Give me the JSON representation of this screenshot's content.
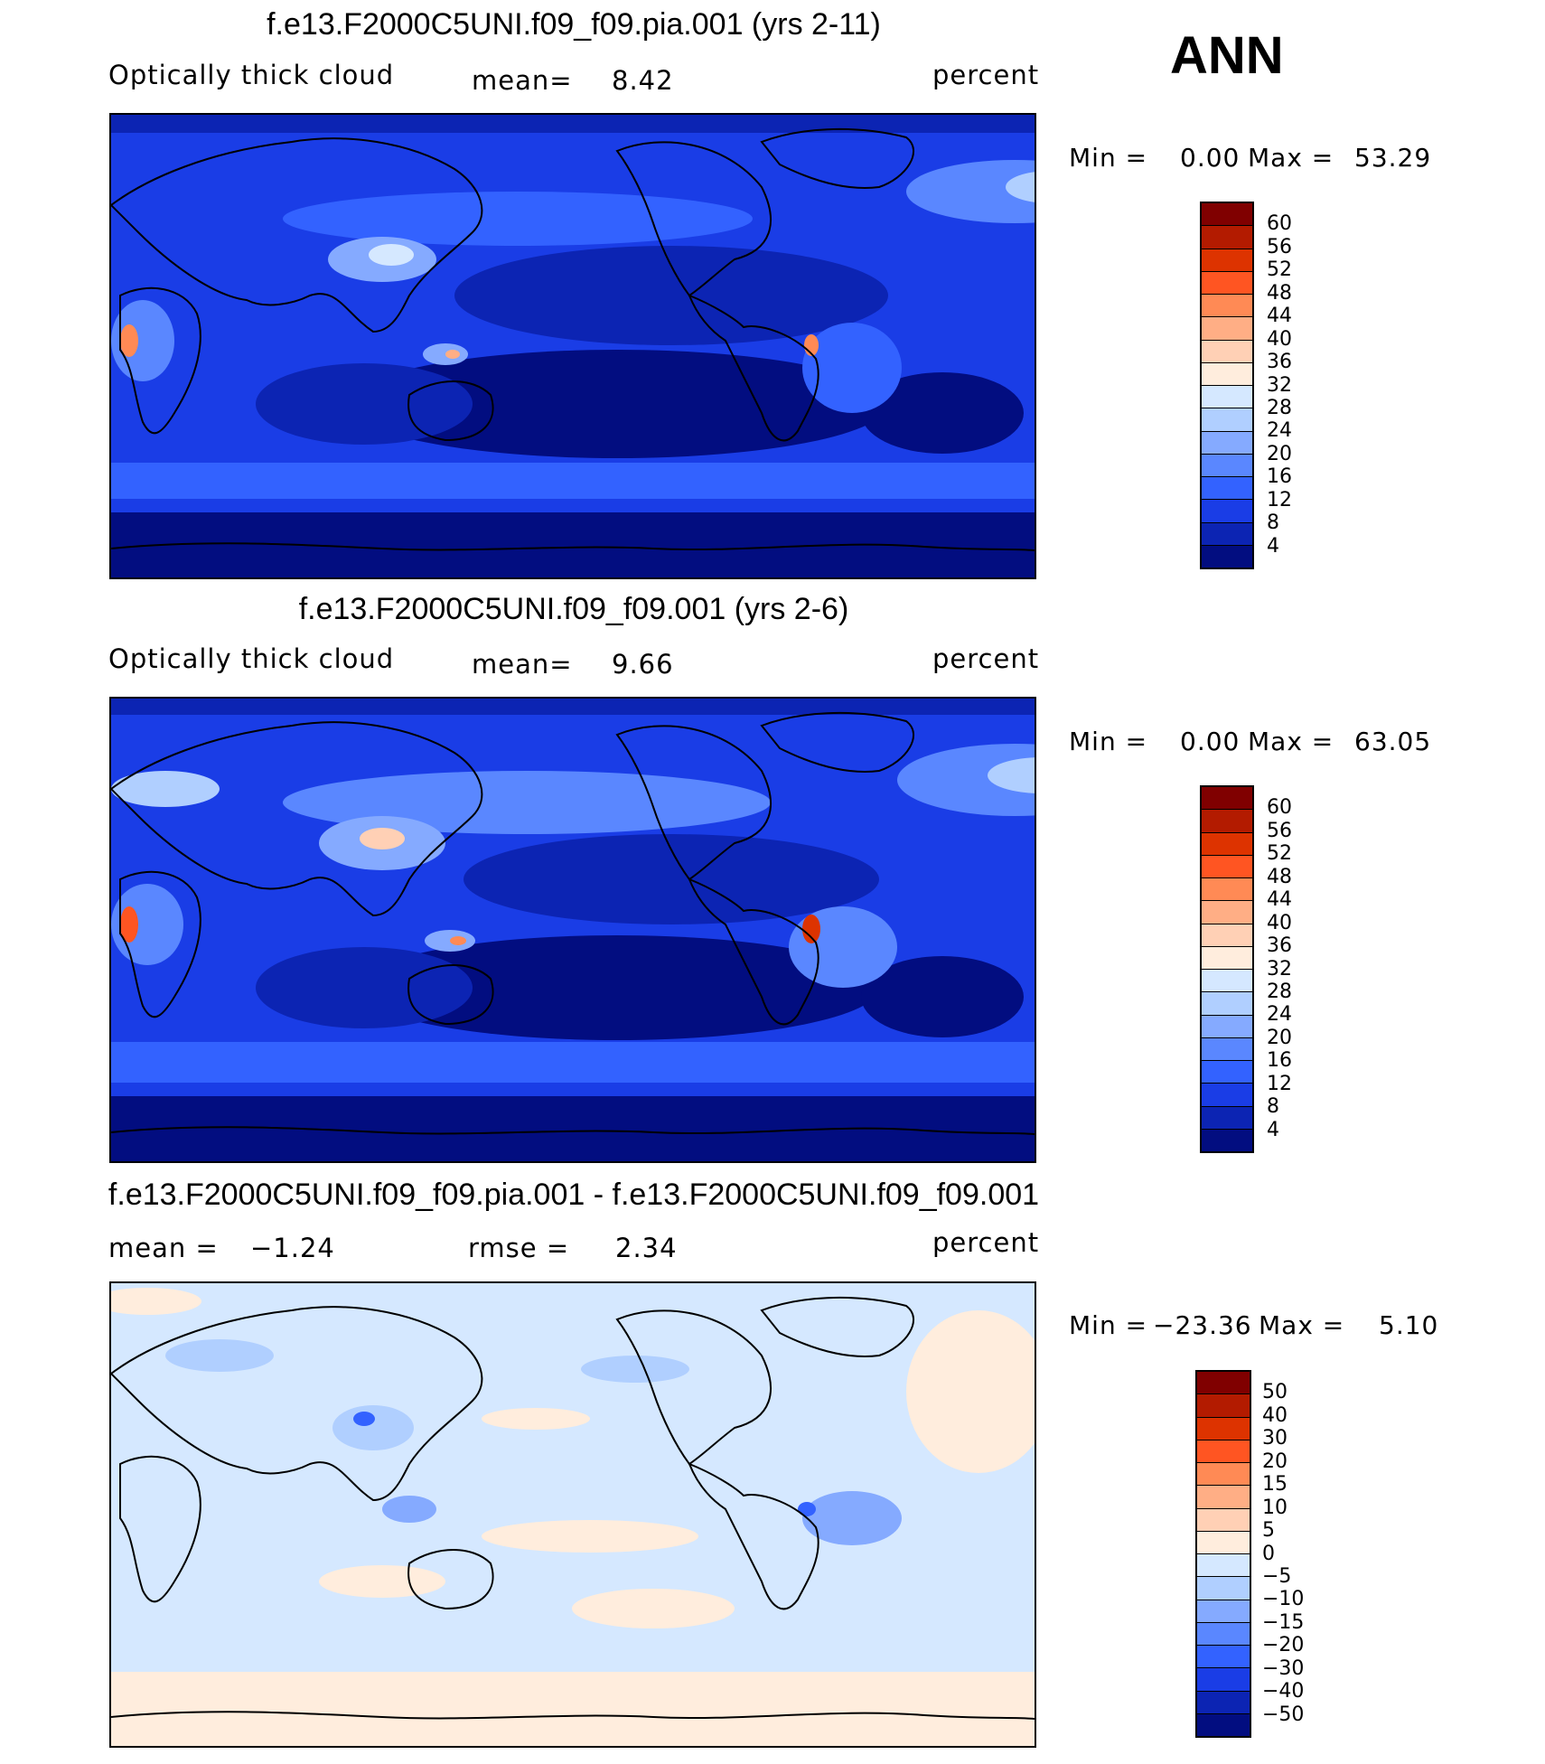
{
  "season": "ANN",
  "panels": [
    {
      "id": "test",
      "title": "f.e13.F2000C5UNI.f09_f09.pia.001 (yrs 2-11)",
      "left_label": "Optically thick cloud",
      "stat1_label": "mean=",
      "stat1_value": "8.42",
      "units": "percent",
      "min_label": "Min =",
      "min_value": "0.00",
      "max_label": "Max =",
      "max_value": "53.29",
      "levels": [
        "60",
        "56",
        "52",
        "48",
        "44",
        "40",
        "36",
        "32",
        "28",
        "24",
        "20",
        "16",
        "12",
        "8",
        "4"
      ],
      "colors": [
        "#800000",
        "#b31b00",
        "#dd3300",
        "#ff5522",
        "#ff8a55",
        "#ffae85",
        "#ffd0b5",
        "#ffeddd",
        "#d5e8ff",
        "#b0cfff",
        "#85aaff",
        "#5a87ff",
        "#3362ff",
        "#1a3de6",
        "#0c24b3",
        "#020d80"
      ]
    },
    {
      "id": "control",
      "title": "f.e13.F2000C5UNI.f09_f09.001 (yrs 2-6)",
      "left_label": "Optically thick cloud",
      "stat1_label": "mean=",
      "stat1_value": "9.66",
      "units": "percent",
      "min_label": "Min =",
      "min_value": "0.00",
      "max_label": "Max =",
      "max_value": "63.05",
      "levels": [
        "60",
        "56",
        "52",
        "48",
        "44",
        "40",
        "36",
        "32",
        "28",
        "24",
        "20",
        "16",
        "12",
        "8",
        "4"
      ],
      "colors": [
        "#800000",
        "#b31b00",
        "#dd3300",
        "#ff5522",
        "#ff8a55",
        "#ffae85",
        "#ffd0b5",
        "#ffeddd",
        "#d5e8ff",
        "#b0cfff",
        "#85aaff",
        "#5a87ff",
        "#3362ff",
        "#1a3de6",
        "#0c24b3",
        "#020d80"
      ]
    },
    {
      "id": "difference",
      "title": "f.e13.F2000C5UNI.f09_f09.pia.001 - f.e13.F2000C5UNI.f09_f09.001",
      "left_label": "mean =",
      "left_value": "−1.24",
      "stat1_label": "rmse =",
      "stat1_value": "2.34",
      "units": "percent",
      "min_label": "Min =",
      "min_value": "−23.36",
      "max_label": "Max =",
      "max_value": "5.10",
      "levels": [
        "50",
        "40",
        "30",
        "20",
        "15",
        "10",
        "5",
        "0",
        "−5",
        "−10",
        "−15",
        "−20",
        "−30",
        "−40",
        "−50"
      ],
      "colors": [
        "#800000",
        "#b31b00",
        "#dd3300",
        "#ff5522",
        "#ff8a55",
        "#ffae85",
        "#ffd0b5",
        "#ffeddd",
        "#d5e8ff",
        "#b0cfff",
        "#85aaff",
        "#5a87ff",
        "#3362ff",
        "#1a3de6",
        "#0c24b3",
        "#020d80"
      ]
    }
  ]
}
